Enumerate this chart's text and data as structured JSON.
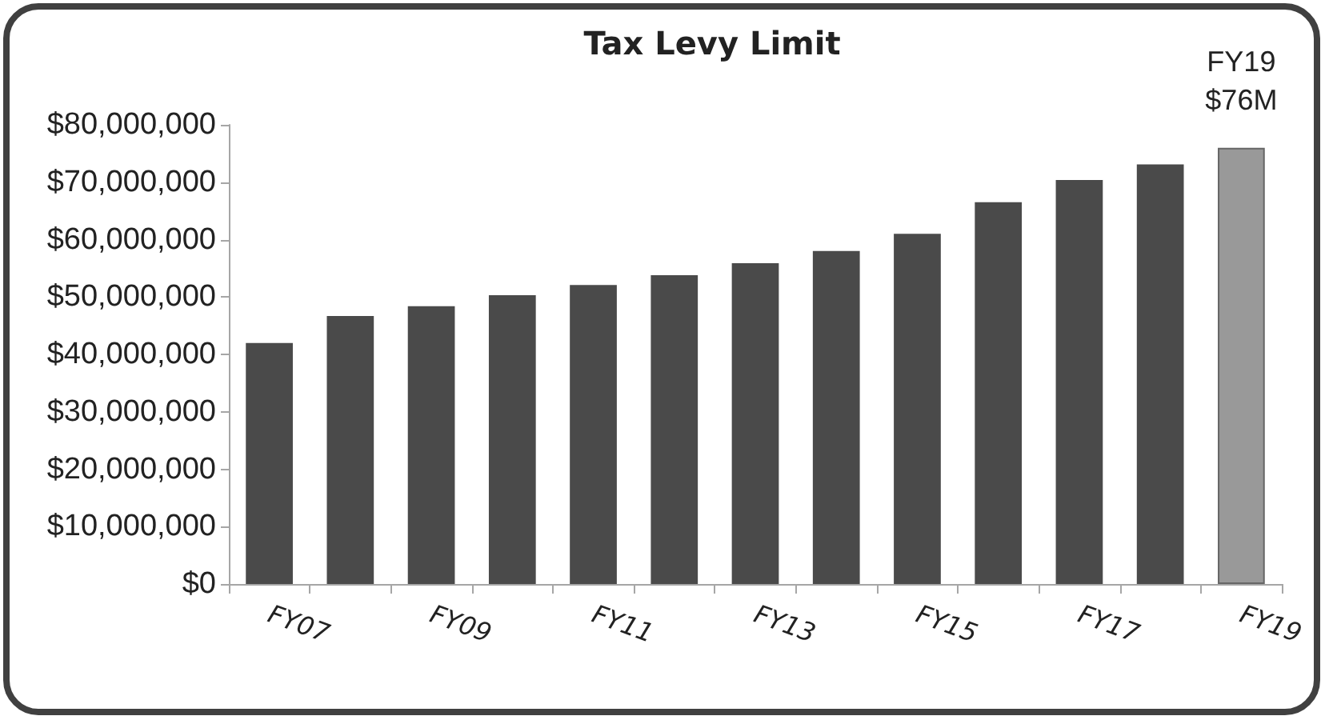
{
  "chart_data": {
    "type": "bar",
    "title": "Tax Levy Limit",
    "categories": [
      "FY07",
      null,
      "FY09",
      null,
      "FY11",
      null,
      "FY13",
      null,
      "FY15",
      null,
      "FY17",
      null,
      "FY19"
    ],
    "values": [
      42000000,
      46700000,
      48400000,
      50300000,
      52100000,
      53800000,
      55900000,
      58000000,
      61000000,
      66500000,
      70400000,
      73100000,
      76000000
    ],
    "colors": [
      "#4a4a4a",
      "#4a4a4a",
      "#4a4a4a",
      "#4a4a4a",
      "#4a4a4a",
      "#4a4a4a",
      "#4a4a4a",
      "#4a4a4a",
      "#4a4a4a",
      "#4a4a4a",
      "#4a4a4a",
      "#4a4a4a",
      "#999999"
    ],
    "ylim": [
      0,
      80000000
    ],
    "yticks": [
      {
        "value": 0,
        "label": "$0"
      },
      {
        "value": 10000000,
        "label": "$10,000,000"
      },
      {
        "value": 20000000,
        "label": "$20,000,000"
      },
      {
        "value": 30000000,
        "label": "$30,000,000"
      },
      {
        "value": 40000000,
        "label": "$40,000,000"
      },
      {
        "value": 50000000,
        "label": "$50,000,000"
      },
      {
        "value": 60000000,
        "label": "$60,000,000"
      },
      {
        "value": 70000000,
        "label": "$70,000,000"
      },
      {
        "value": 80000000,
        "label": "$80,000,000"
      }
    ],
    "annotations": [
      {
        "text": "FY19\n$76M",
        "x": "FY19",
        "y": 76000000
      }
    ],
    "grid": false
  }
}
